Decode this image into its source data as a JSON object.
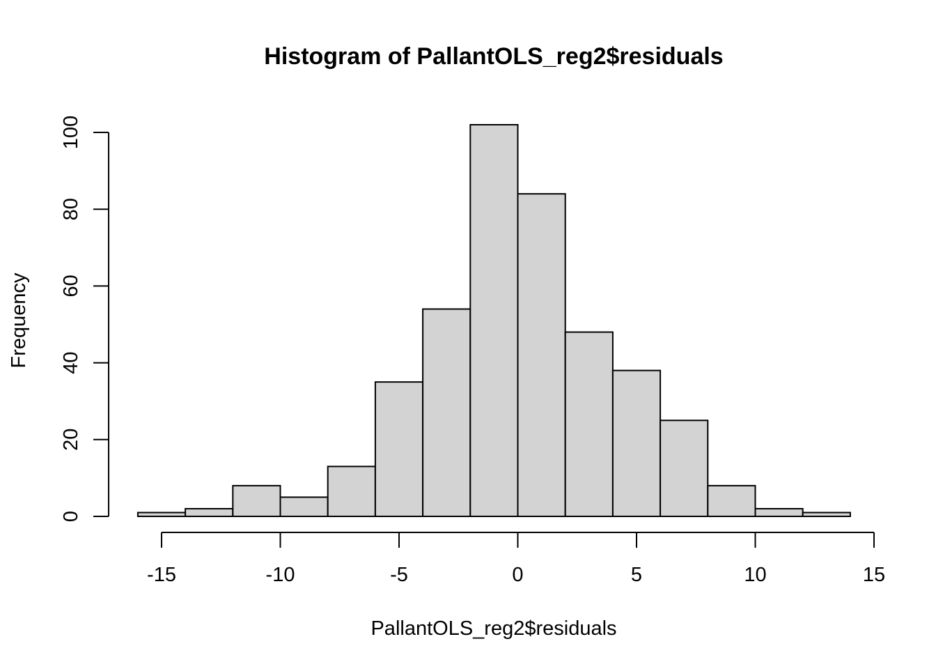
{
  "chart_data": {
    "type": "bar",
    "title": "Histogram of PallantOLS_reg2$residuals",
    "xlabel": "PallantOLS_reg2$residuals",
    "ylabel": "Frequency",
    "bin_edges": [
      -16,
      -14,
      -12,
      -10,
      -8,
      -6,
      -4,
      -2,
      0,
      2,
      4,
      6,
      8,
      10,
      12,
      14
    ],
    "values": [
      1,
      2,
      8,
      5,
      13,
      35,
      54,
      102,
      84,
      48,
      38,
      25,
      8,
      2,
      1
    ],
    "xlim": [
      -15,
      15
    ],
    "ylim": [
      0,
      100
    ],
    "x_ticks": [
      -15,
      -10,
      -5,
      0,
      5,
      10,
      15
    ],
    "y_ticks": [
      0,
      20,
      40,
      60,
      80,
      100
    ],
    "bar_color": "#d3d3d3",
    "grid": false,
    "legend": "none"
  }
}
